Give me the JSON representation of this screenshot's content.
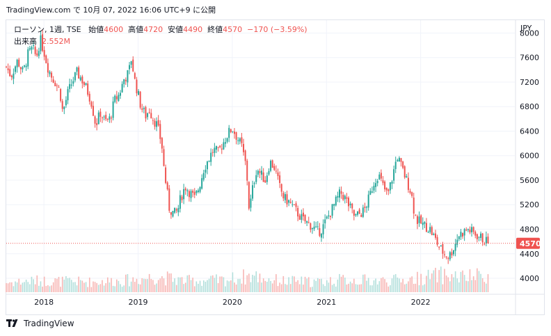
{
  "caption": "TradingView.com で 10月 07, 2022 16:06 UTC+9 に公開",
  "legend": {
    "symbol": "ローソン, 1週, TSE",
    "open_label": "始値",
    "open_value": "4600",
    "high_label": "高値",
    "high_value": "4720",
    "low_label": "安値",
    "low_value": "4490",
    "close_label": "終値",
    "close_value": "4570",
    "change": "−170 (−3.59%)",
    "volume_label": "出来高",
    "volume_value": "2.552M"
  },
  "currency": "JPY",
  "brand": "TradingView",
  "colors": {
    "up": "#26a69a",
    "down": "#ef5350",
    "up_volume": "#b2dfdb",
    "down_volume": "#f7b6b4",
    "grid": "#f0f3fa"
  },
  "chart_data": {
    "type": "candlestick",
    "timeframe": "1週",
    "x_tick_labels": [
      "2018",
      "2019",
      "2020",
      "2021",
      "2022"
    ],
    "y_tick_labels": [
      "4000",
      "4400",
      "4800",
      "5200",
      "5600",
      "6000",
      "6400",
      "6800",
      "7200",
      "7600",
      "8000"
    ],
    "ylim": [
      3830,
      8130
    ],
    "x_range": [
      2017.6,
      2023.0
    ],
    "last_price": 4570,
    "last_price_label": "4570",
    "close_path": [
      [
        2017.6,
        7450
      ],
      [
        2017.65,
        7300
      ],
      [
        2017.72,
        7550
      ],
      [
        2017.78,
        7350
      ],
      [
        2017.83,
        7650
      ],
      [
        2017.88,
        7750
      ],
      [
        2017.92,
        7600
      ],
      [
        2017.96,
        7900
      ],
      [
        2018.0,
        7700
      ],
      [
        2018.04,
        7450
      ],
      [
        2018.08,
        7300
      ],
      [
        2018.12,
        7200
      ],
      [
        2018.17,
        7050
      ],
      [
        2018.2,
        6700
      ],
      [
        2018.25,
        7000
      ],
      [
        2018.3,
        7200
      ],
      [
        2018.35,
        7350
      ],
      [
        2018.4,
        7250
      ],
      [
        2018.45,
        7100
      ],
      [
        2018.5,
        6900
      ],
      [
        2018.55,
        6500
      ],
      [
        2018.6,
        6700
      ],
      [
        2018.65,
        6550
      ],
      [
        2018.7,
        6600
      ],
      [
        2018.75,
        6900
      ],
      [
        2018.8,
        7000
      ],
      [
        2018.85,
        7250
      ],
      [
        2018.9,
        7350
      ],
      [
        2018.93,
        7600
      ],
      [
        2018.96,
        7250
      ],
      [
        2019.0,
        7000
      ],
      [
        2019.03,
        6800
      ],
      [
        2019.08,
        6650
      ],
      [
        2019.12,
        6750
      ],
      [
        2019.16,
        6600
      ],
      [
        2019.2,
        6500
      ],
      [
        2019.25,
        6200
      ],
      [
        2019.28,
        5700
      ],
      [
        2019.3,
        5500
      ],
      [
        2019.33,
        5150
      ],
      [
        2019.38,
        5050
      ],
      [
        2019.42,
        5100
      ],
      [
        2019.45,
        5300
      ],
      [
        2019.5,
        5500
      ],
      [
        2019.55,
        5400
      ],
      [
        2019.6,
        5300
      ],
      [
        2019.65,
        5500
      ],
      [
        2019.7,
        5800
      ],
      [
        2019.75,
        5950
      ],
      [
        2019.8,
        6100
      ],
      [
        2019.85,
        6050
      ],
      [
        2019.9,
        6200
      ],
      [
        2019.95,
        6350
      ],
      [
        2020.0,
        6450
      ],
      [
        2020.05,
        6300
      ],
      [
        2020.1,
        6150
      ],
      [
        2020.15,
        5800
      ],
      [
        2020.18,
        5100
      ],
      [
        2020.22,
        5500
      ],
      [
        2020.26,
        5800
      ],
      [
        2020.3,
        5700
      ],
      [
        2020.35,
        5600
      ],
      [
        2020.4,
        5900
      ],
      [
        2020.45,
        5800
      ],
      [
        2020.5,
        5500
      ],
      [
        2020.55,
        5300
      ],
      [
        2020.6,
        5250
      ],
      [
        2020.65,
        5150
      ],
      [
        2020.7,
        5050
      ],
      [
        2020.75,
        4950
      ],
      [
        2020.8,
        4900
      ],
      [
        2020.85,
        4850
      ],
      [
        2020.9,
        4750
      ],
      [
        2020.95,
        4800
      ],
      [
        2021.0,
        4950
      ],
      [
        2021.05,
        5100
      ],
      [
        2021.1,
        5250
      ],
      [
        2021.15,
        5400
      ],
      [
        2021.2,
        5300
      ],
      [
        2021.25,
        5150
      ],
      [
        2021.3,
        5000
      ],
      [
        2021.35,
        5050
      ],
      [
        2021.4,
        5100
      ],
      [
        2021.45,
        5300
      ],
      [
        2021.5,
        5550
      ],
      [
        2021.55,
        5700
      ],
      [
        2021.6,
        5500
      ],
      [
        2021.65,
        5350
      ],
      [
        2021.7,
        5650
      ],
      [
        2021.75,
        6000
      ],
      [
        2021.8,
        5800
      ],
      [
        2021.85,
        5600
      ],
      [
        2021.9,
        5400
      ],
      [
        2021.93,
        5100
      ],
      [
        2021.96,
        4950
      ],
      [
        2022.0,
        4900
      ],
      [
        2022.05,
        4850
      ],
      [
        2022.1,
        4800
      ],
      [
        2022.15,
        4650
      ],
      [
        2022.2,
        4500
      ],
      [
        2022.25,
        4400
      ],
      [
        2022.3,
        4350
      ],
      [
        2022.35,
        4500
      ],
      [
        2022.4,
        4700
      ],
      [
        2022.45,
        4750
      ],
      [
        2022.5,
        4800
      ],
      [
        2022.55,
        4750
      ],
      [
        2022.6,
        4700
      ],
      [
        2022.65,
        4650
      ],
      [
        2022.72,
        4570
      ]
    ],
    "volume_path": [
      [
        2017.6,
        0.34
      ],
      [
        2017.9,
        0.4
      ],
      [
        2018.2,
        0.38
      ],
      [
        2018.5,
        0.36
      ],
      [
        2018.9,
        0.42
      ],
      [
        2019.2,
        0.55
      ],
      [
        2019.5,
        0.4
      ],
      [
        2019.9,
        0.42
      ],
      [
        2020.2,
        0.58
      ],
      [
        2020.5,
        0.4
      ],
      [
        2020.9,
        0.36
      ],
      [
        2021.2,
        0.44
      ],
      [
        2021.6,
        0.4
      ],
      [
        2021.9,
        0.45
      ],
      [
        2022.2,
        0.6
      ],
      [
        2022.5,
        0.52
      ],
      [
        2022.72,
        0.62
      ]
    ]
  }
}
